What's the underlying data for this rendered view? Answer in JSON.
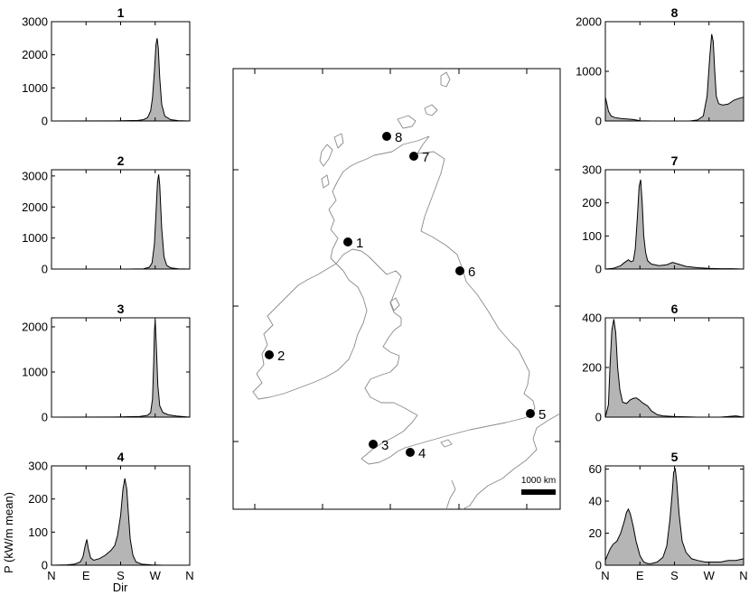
{
  "figure": {
    "ylabel": "P (kW/m mean)",
    "xlabel": "Dir",
    "dir_ticks": [
      "N",
      "E",
      "S",
      "W",
      "N"
    ]
  },
  "map": {
    "scale_label": "1000 km",
    "sites": [
      "1",
      "2",
      "3",
      "4",
      "5",
      "6",
      "7",
      "8"
    ],
    "coast_color": "#888888"
  },
  "chart_data": [
    {
      "id": "1",
      "type": "area",
      "title": "1",
      "xlim": [
        0,
        360
      ],
      "ylim": [
        0,
        3000
      ],
      "yticks": [
        0,
        1000,
        2000,
        3000
      ],
      "x": [
        0,
        180,
        225,
        240,
        250,
        258,
        263,
        268,
        272,
        275,
        278,
        282,
        287,
        295,
        310,
        330,
        360
      ],
      "values": [
        0,
        5,
        15,
        40,
        100,
        300,
        700,
        1500,
        2300,
        2500,
        2200,
        1300,
        500,
        150,
        40,
        10,
        0
      ],
      "fill": "#b5b5b5"
    },
    {
      "id": "2",
      "type": "area",
      "title": "2",
      "xlim": [
        0,
        360
      ],
      "ylim": [
        0,
        3200
      ],
      "yticks": [
        0,
        1000,
        2000,
        3000
      ],
      "x": [
        0,
        200,
        240,
        255,
        262,
        268,
        273,
        276,
        279,
        282,
        287,
        293,
        300,
        310,
        330,
        360
      ],
      "values": [
        0,
        0,
        10,
        60,
        200,
        800,
        2000,
        2800,
        3050,
        2700,
        1300,
        400,
        120,
        40,
        5,
        0
      ],
      "fill": "#b5b5b5"
    },
    {
      "id": "3",
      "type": "area",
      "title": "3",
      "xlim": [
        0,
        360
      ],
      "ylim": [
        0,
        2200
      ],
      "yticks": [
        0,
        1000,
        2000
      ],
      "x": [
        0,
        180,
        230,
        250,
        258,
        263,
        266,
        268,
        270,
        273,
        277,
        282,
        290,
        305,
        325,
        345,
        360
      ],
      "values": [
        0,
        5,
        15,
        40,
        100,
        400,
        1200,
        1900,
        2150,
        1600,
        700,
        250,
        100,
        50,
        25,
        10,
        0
      ],
      "fill": "#b5b5b5"
    },
    {
      "id": "4",
      "type": "area",
      "title": "4",
      "xlim": [
        0,
        360
      ],
      "ylim": [
        0,
        300
      ],
      "yticks": [
        0,
        100,
        200,
        300
      ],
      "x": [
        0,
        40,
        60,
        75,
        82,
        88,
        92,
        96,
        102,
        110,
        125,
        140,
        155,
        165,
        172,
        180,
        186,
        191,
        196,
        200,
        205,
        212,
        220,
        235,
        260,
        290,
        330,
        360
      ],
      "values": [
        0,
        1,
        3,
        10,
        25,
        60,
        78,
        50,
        22,
        15,
        20,
        30,
        45,
        60,
        90,
        150,
        230,
        262,
        230,
        160,
        80,
        30,
        10,
        3,
        1,
        0,
        0,
        0
      ],
      "fill": "#b5b5b5"
    },
    {
      "id": "8",
      "type": "area",
      "title": "8",
      "xlim": [
        0,
        360
      ],
      "ylim": [
        0,
        2000
      ],
      "yticks": [
        0,
        1000,
        2000
      ],
      "x": [
        0,
        3,
        8,
        15,
        25,
        40,
        55,
        70,
        80,
        90,
        120,
        150,
        180,
        220,
        240,
        255,
        265,
        272,
        277,
        281,
        285,
        289,
        295,
        305,
        320,
        335,
        350,
        360
      ],
      "values": [
        480,
        380,
        200,
        100,
        70,
        50,
        40,
        30,
        20,
        5,
        0,
        0,
        0,
        0,
        20,
        100,
        500,
        1300,
        1750,
        1600,
        1000,
        500,
        350,
        320,
        340,
        420,
        460,
        480
      ],
      "fill": "#b5b5b5"
    },
    {
      "id": "7",
      "type": "area",
      "title": "7",
      "xlim": [
        0,
        360
      ],
      "ylim": [
        0,
        300
      ],
      "yticks": [
        0,
        100,
        200,
        300
      ],
      "x": [
        0,
        20,
        40,
        50,
        60,
        67,
        73,
        78,
        83,
        88,
        92,
        96,
        100,
        105,
        110,
        120,
        140,
        160,
        175,
        190,
        210,
        240,
        270,
        300,
        330,
        360
      ],
      "values": [
        0,
        2,
        10,
        20,
        28,
        22,
        25,
        60,
        150,
        250,
        270,
        200,
        100,
        50,
        25,
        15,
        10,
        13,
        20,
        15,
        8,
        4,
        2,
        1,
        1,
        0
      ],
      "fill": "#b5b5b5"
    },
    {
      "id": "6",
      "type": "area",
      "title": "6",
      "xlim": [
        0,
        360
      ],
      "ylim": [
        0,
        400
      ],
      "yticks": [
        0,
        200,
        400
      ],
      "x": [
        0,
        8,
        12,
        17,
        22,
        27,
        32,
        38,
        45,
        55,
        65,
        72,
        80,
        88,
        95,
        100,
        105,
        110,
        120,
        135,
        150,
        180,
        240,
        300,
        340,
        360
      ],
      "values": [
        0,
        50,
        200,
        350,
        395,
        340,
        200,
        110,
        60,
        55,
        70,
        75,
        78,
        70,
        60,
        55,
        50,
        45,
        25,
        10,
        5,
        2,
        0,
        0,
        5,
        0
      ],
      "fill": "#b5b5b5"
    },
    {
      "id": "5",
      "type": "area",
      "title": "5",
      "xlim": [
        0,
        360
      ],
      "ylim": [
        0,
        62
      ],
      "yticks": [
        0,
        20,
        40,
        60
      ],
      "x": [
        0,
        5,
        12,
        20,
        30,
        40,
        50,
        55,
        60,
        65,
        72,
        80,
        90,
        100,
        110,
        120,
        135,
        150,
        160,
        168,
        174,
        178,
        182,
        186,
        192,
        200,
        210,
        225,
        240,
        260,
        280,
        300,
        320,
        340,
        360
      ],
      "values": [
        3,
        6,
        10,
        13,
        15,
        20,
        28,
        33,
        35,
        32,
        25,
        15,
        6,
        2,
        1,
        1,
        2,
        5,
        12,
        28,
        45,
        58,
        60,
        52,
        32,
        15,
        8,
        4,
        3,
        2,
        2,
        2,
        3,
        3,
        4
      ],
      "fill": "#b5b5b5"
    }
  ]
}
